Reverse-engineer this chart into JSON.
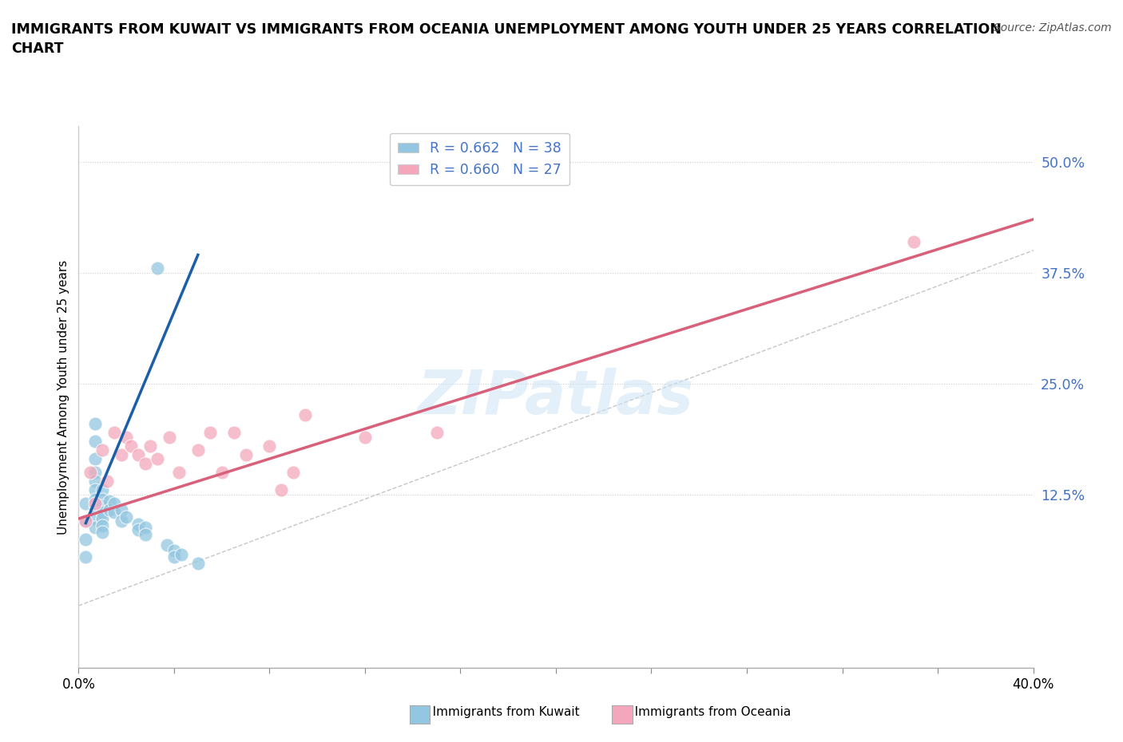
{
  "title": "IMMIGRANTS FROM KUWAIT VS IMMIGRANTS FROM OCEANIA UNEMPLOYMENT AMONG YOUTH UNDER 25 YEARS CORRELATION\nCHART",
  "source": "Source: ZipAtlas.com",
  "ylabel": "Unemployment Among Youth under 25 years",
  "watermark": "ZIPatlas",
  "xlim": [
    0.0,
    0.4
  ],
  "ylim": [
    -0.07,
    0.54
  ],
  "yticks": [
    0.125,
    0.25,
    0.375,
    0.5
  ],
  "ytick_labels": [
    "12.5%",
    "25.0%",
    "37.5%",
    "50.0%"
  ],
  "xtick_labels_show": [
    "0.0%",
    "",
    "",
    "",
    "",
    "",
    "",
    "",
    "",
    "40.0%"
  ],
  "legend_r1": "R = 0.662",
  "legend_n1": "N = 38",
  "legend_r2": "R = 0.660",
  "legend_n2": "N = 27",
  "color_kuwait": "#93c6e0",
  "color_oceania": "#f4a7bc",
  "color_trendline_kuwait": "#1a5fa8",
  "color_trendline_oceania": "#d9607a",
  "color_refline": "#c0c0c0",
  "kuwait_x": [
    0.003,
    0.003,
    0.003,
    0.003,
    0.007,
    0.007,
    0.007,
    0.007,
    0.007,
    0.007,
    0.007,
    0.007,
    0.007,
    0.007,
    0.01,
    0.01,
    0.01,
    0.01,
    0.01,
    0.01,
    0.01,
    0.013,
    0.013,
    0.015,
    0.015,
    0.018,
    0.018,
    0.02,
    0.025,
    0.025,
    0.028,
    0.028,
    0.033,
    0.037,
    0.04,
    0.04,
    0.043,
    0.05
  ],
  "kuwait_y": [
    0.115,
    0.095,
    0.075,
    0.055,
    0.205,
    0.185,
    0.165,
    0.15,
    0.14,
    0.13,
    0.12,
    0.11,
    0.098,
    0.088,
    0.13,
    0.12,
    0.112,
    0.105,
    0.098,
    0.09,
    0.083,
    0.118,
    0.108,
    0.115,
    0.105,
    0.108,
    0.095,
    0.1,
    0.092,
    0.085,
    0.088,
    0.08,
    0.38,
    0.068,
    0.062,
    0.055,
    0.058,
    0.048
  ],
  "oceania_x": [
    0.003,
    0.005,
    0.007,
    0.01,
    0.012,
    0.015,
    0.018,
    0.02,
    0.022,
    0.025,
    0.028,
    0.03,
    0.033,
    0.038,
    0.042,
    0.05,
    0.055,
    0.06,
    0.065,
    0.07,
    0.08,
    0.085,
    0.09,
    0.095,
    0.12,
    0.15,
    0.35
  ],
  "oceania_y": [
    0.095,
    0.15,
    0.115,
    0.175,
    0.14,
    0.195,
    0.17,
    0.19,
    0.18,
    0.17,
    0.16,
    0.18,
    0.165,
    0.19,
    0.15,
    0.175,
    0.195,
    0.15,
    0.195,
    0.17,
    0.18,
    0.13,
    0.15,
    0.215,
    0.19,
    0.195,
    0.41
  ],
  "kuwait_trend_x": [
    0.003,
    0.05
  ],
  "kuwait_trend_y": [
    0.093,
    0.395
  ],
  "oceania_trend_x": [
    0.0,
    0.4
  ],
  "oceania_trend_y": [
    0.098,
    0.435
  ],
  "refline_x": [
    0.0,
    0.54
  ],
  "refline_y": [
    0.0,
    0.54
  ]
}
